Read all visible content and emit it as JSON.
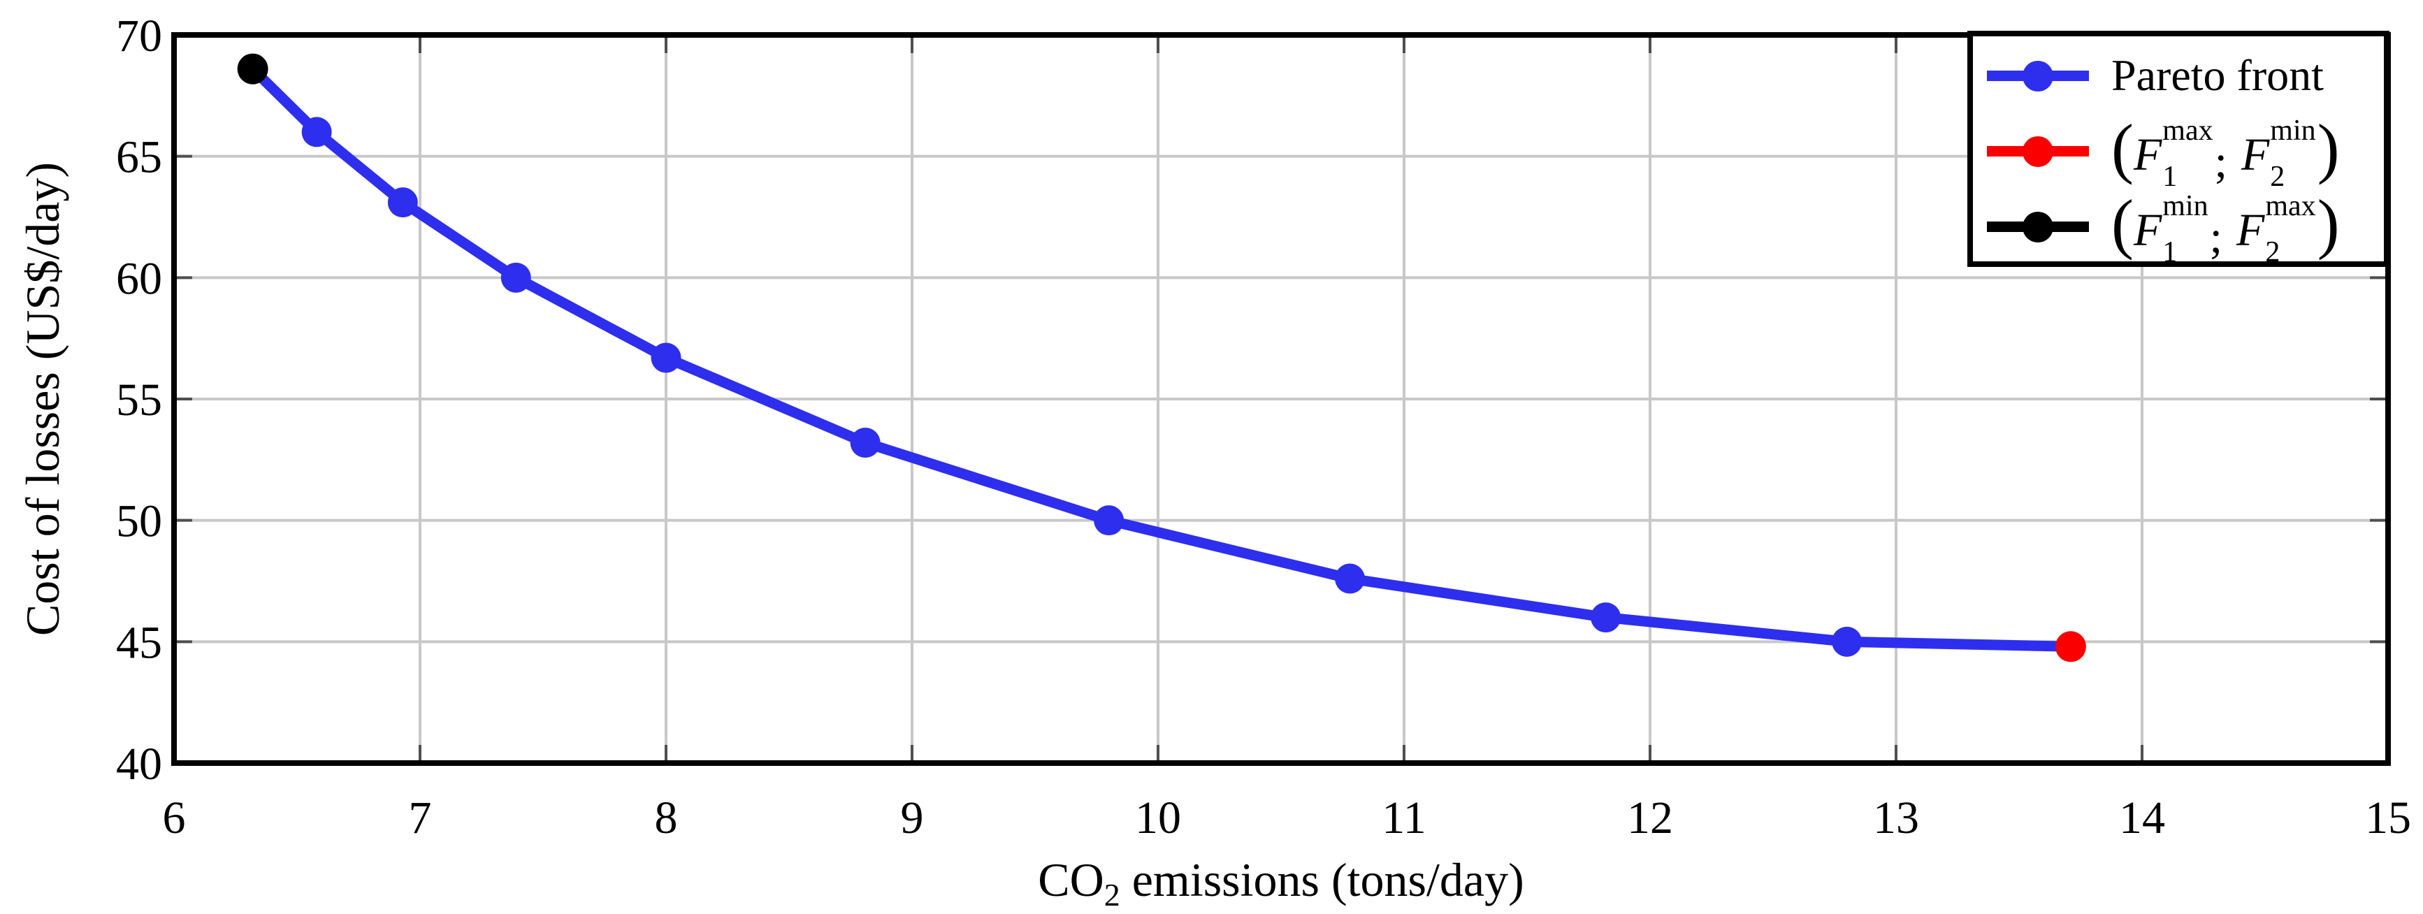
{
  "figure": {
    "background": "#ffffff"
  },
  "colors": {
    "axis": "#000000",
    "grid": "#c8c8c8",
    "tick_stub": "#4f4f4f",
    "pareto_blue": "#2e2eef",
    "endpoint_red": "#fa0000",
    "endpoint_black": "#000000"
  },
  "chart_data": {
    "type": "line",
    "title": "",
    "xlabel": {
      "prefix": "CO",
      "subscript": "2",
      "suffix": " emissions (tons/day)"
    },
    "ylabel": "Cost of losses (US$/day)",
    "xlim": [
      6,
      15
    ],
    "ylim": [
      40,
      70
    ],
    "xticks": [
      6,
      7,
      8,
      9,
      10,
      11,
      12,
      13,
      14,
      15
    ],
    "yticks": [
      40,
      45,
      50,
      55,
      60,
      65,
      70
    ],
    "grid": true,
    "legend_position": "top-right",
    "series": [
      {
        "name": "Pareto front",
        "color": "#2e2eef",
        "marker": "circle",
        "line": true,
        "points": [
          [
            6.32,
            68.6
          ],
          [
            6.58,
            66.0
          ],
          [
            6.93,
            63.1
          ],
          [
            7.39,
            60.0
          ],
          [
            8.0,
            56.7
          ],
          [
            8.81,
            53.2
          ],
          [
            9.8,
            50.0
          ],
          [
            10.78,
            47.6
          ],
          [
            11.82,
            46.0
          ],
          [
            12.8,
            45.0
          ],
          [
            13.71,
            44.8
          ]
        ]
      },
      {
        "name": "(F1_max; F2_min)",
        "color": "#fa0000",
        "marker": "circle",
        "line": false,
        "points": [
          [
            13.71,
            44.8
          ]
        ]
      },
      {
        "name": "(F1_min; F2_max)",
        "color": "#000000",
        "marker": "circle",
        "line": false,
        "points": [
          [
            6.32,
            68.6
          ]
        ]
      }
    ],
    "legend": {
      "entries": [
        {
          "type": "text",
          "color": "#2e2eef",
          "label": "Pareto front"
        },
        {
          "type": "math",
          "color": "#fa0000",
          "open": "(",
          "f1": "F",
          "sub1": "1",
          "sup1": "max",
          "separator": ";",
          "f2": "F",
          "sub2": "2",
          "sup2": "min",
          "close": ")"
        },
        {
          "type": "math",
          "color": "#000000",
          "open": "(",
          "f1": "F",
          "sub1": "1",
          "sup1": "min",
          "separator": ";",
          "f2": "F",
          "sub2": "2",
          "sup2": "max",
          "close": ")"
        }
      ]
    }
  }
}
